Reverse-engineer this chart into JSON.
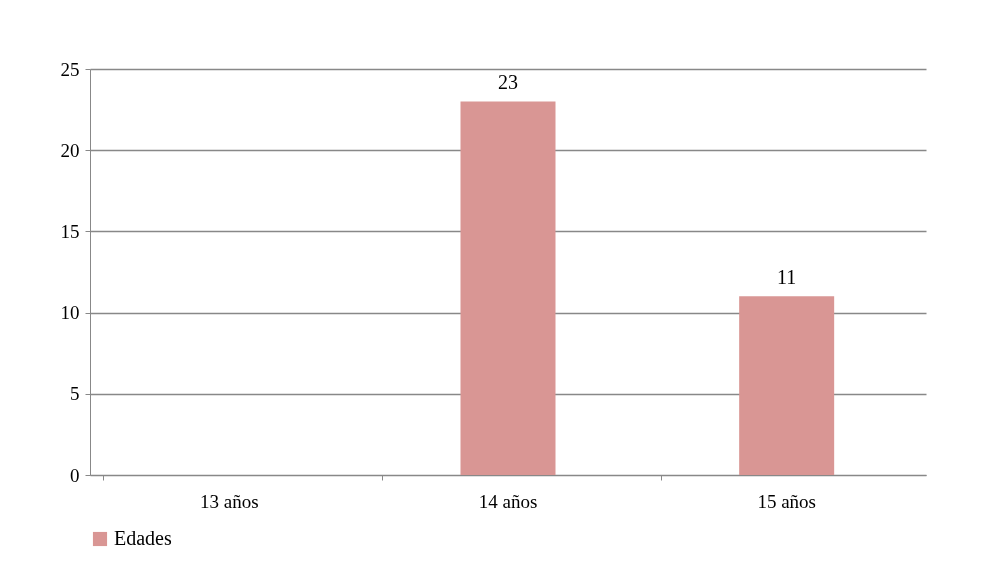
{
  "chart_data": {
    "type": "bar",
    "categories": [
      "13 años",
      "14 años",
      "15 años"
    ],
    "series": [
      {
        "name": "Edades",
        "color": "#d99694",
        "values": [
          null,
          23,
          11
        ]
      }
    ],
    "ylim": [
      0,
      25
    ],
    "yticks": [
      0,
      5,
      10,
      15,
      20,
      25
    ],
    "grid": "y",
    "legend": "bottom",
    "data_labels": true
  }
}
